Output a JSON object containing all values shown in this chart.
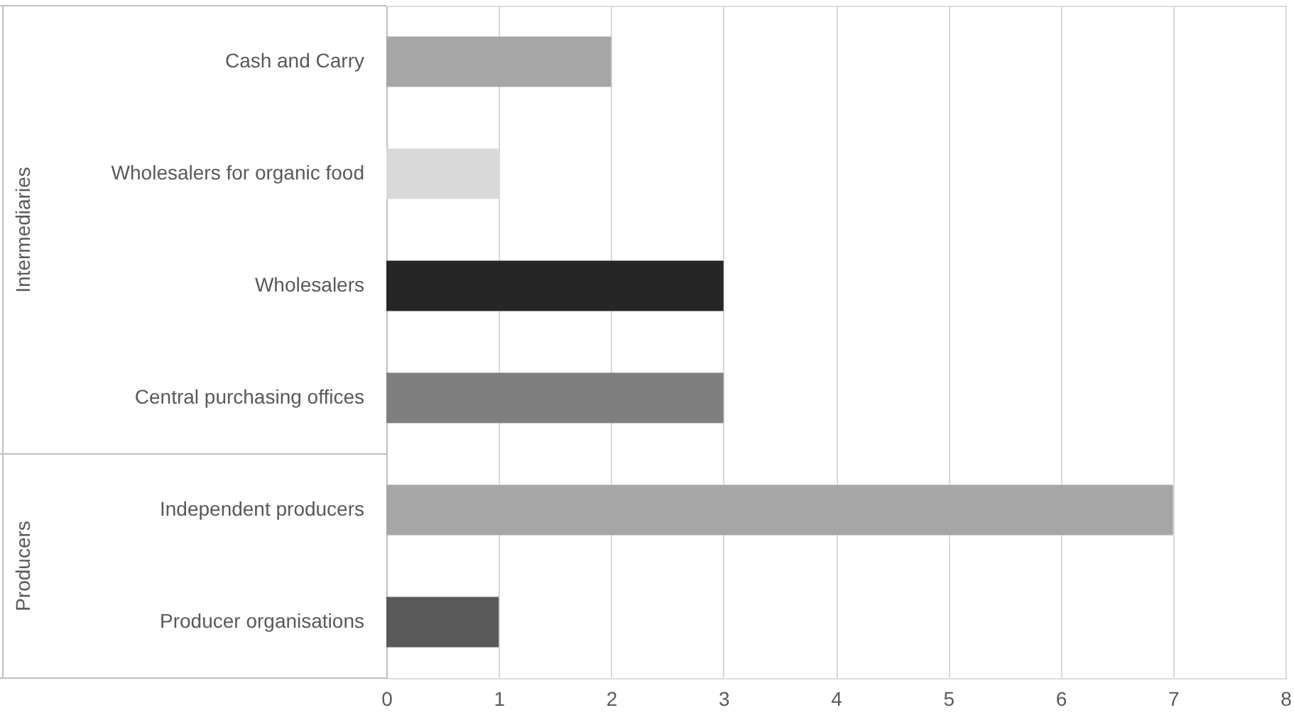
{
  "chart_data": {
    "type": "bar",
    "orientation": "horizontal",
    "categories": [
      "Cash and Carry",
      "Wholesalers for organic food",
      "Wholesalers",
      "Central purchasing offices",
      "Independent producers",
      "Producer organisations"
    ],
    "values": [
      2,
      1,
      3,
      3,
      7,
      1
    ],
    "colors": [
      "#a6a6a6",
      "#d9d9d9",
      "#262626",
      "#7f7f7f",
      "#a6a6a6",
      "#595959"
    ],
    "xlim": [
      0,
      8
    ],
    "xticks": [
      0,
      1,
      2,
      3,
      4,
      5,
      6,
      7,
      8
    ],
    "grid": "x",
    "annotations": [
      "Intermediaries",
      "Producers"
    ]
  }
}
